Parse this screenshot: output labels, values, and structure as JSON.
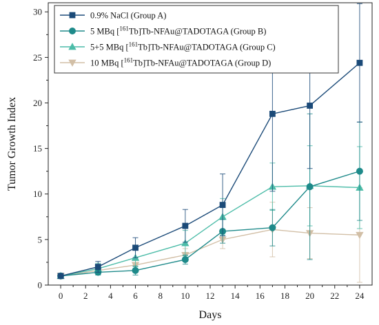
{
  "chart_data": {
    "type": "line",
    "title": "",
    "xlabel": "Days",
    "ylabel": "Tumor Growth Index",
    "xlim": [
      -1,
      25
    ],
    "ylim": [
      0,
      31
    ],
    "xticks": [
      0,
      2,
      4,
      6,
      8,
      10,
      12,
      14,
      16,
      18,
      20,
      22,
      24
    ],
    "yticks": [
      0,
      5,
      10,
      15,
      20,
      25,
      30
    ],
    "grid": false,
    "legend_position": "top-left",
    "x": [
      0,
      3,
      6,
      10,
      13,
      17,
      20,
      24
    ],
    "series": [
      {
        "name": "0.9% NaCl (Group A)",
        "legend": {
          "prefix": "0.9% NaCl (Group A)",
          "sup": "",
          "suffix": ""
        },
        "marker": "square",
        "color": "#1b4a78",
        "values": [
          1.0,
          2.0,
          4.1,
          6.5,
          8.8,
          18.8,
          19.7,
          24.4
        ],
        "errors": [
          0.15,
          0.6,
          1.1,
          1.8,
          3.4,
          8.5,
          6.9,
          6.5
        ]
      },
      {
        "name": "5 MBq [161Tb]Tb-NFAu@TADOTAGA (Group B)",
        "legend": {
          "prefix": "5 MBq [",
          "sup": "161",
          "suffix": "Tb]Tb-NFAu@TADOTAGA (Group B)"
        },
        "marker": "circle",
        "color": "#1e8a8a",
        "values": [
          1.0,
          1.4,
          1.6,
          2.8,
          5.9,
          6.3,
          10.8,
          12.5
        ],
        "errors": [
          0.1,
          0.3,
          0.5,
          0.5,
          1.3,
          2.0,
          8.0,
          5.4
        ]
      },
      {
        "name": "5+5 MBq [161Tb]Tb-NFAu@TADOTAGA (Group C)",
        "legend": {
          "prefix": "5+5 MBq [",
          "sup": "161",
          "suffix": "Tb]Tb-NFAu@TADOTAGA (Group C)"
        },
        "marker": "triangle-up",
        "color": "#4cbca8",
        "values": [
          1.0,
          1.8,
          3.0,
          4.6,
          7.5,
          10.8,
          10.9,
          10.7
        ],
        "errors": [
          0.1,
          0.6,
          1.0,
          1.4,
          2.0,
          2.6,
          4.4,
          4.5
        ]
      },
      {
        "name": "10 MBq [161Tb]Tb-NFAu@TADOTAGA (Group D)",
        "legend": {
          "prefix": "10 MBq [",
          "sup": "161",
          "suffix": "Tb]Tb-NFAu@TADOTAGA (Group D)"
        },
        "marker": "triangle-down",
        "color": "#d2bfa6",
        "values": [
          1.0,
          1.6,
          2.2,
          3.3,
          5.0,
          6.1,
          5.7,
          5.5
        ],
        "errors": [
          0.1,
          0.4,
          0.5,
          0.7,
          1.0,
          3.0,
          2.8,
          5.2
        ]
      }
    ]
  }
}
